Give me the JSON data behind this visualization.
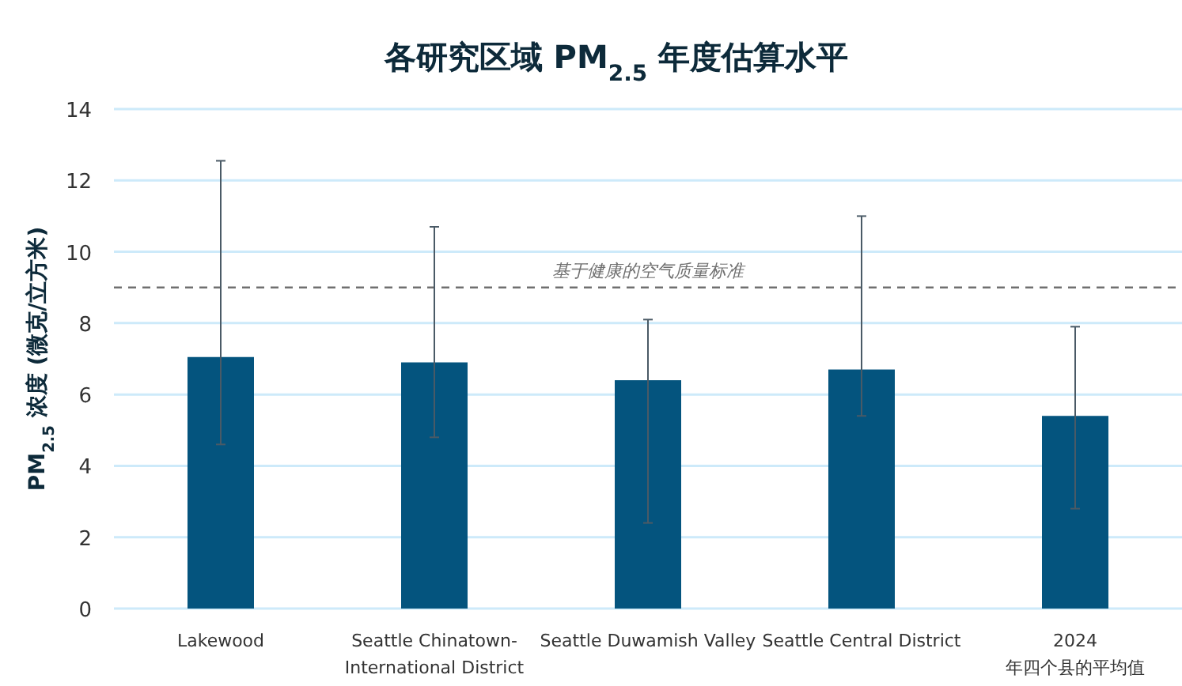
{
  "chart_data": {
    "type": "bar",
    "title": "各研究区域 PM$_{2.5}$ 年度估算水平",
    "ylabel": "PM$_{2.5}$ 浓度 (微克/立方米)",
    "categories": [
      "Lakewood",
      "Seattle Chinatown-\nInternational District",
      "Seattle Duwamish Valley",
      "Seattle Central District",
      "2024\n年四个县的平均值"
    ],
    "series": [
      {
        "color": "#04547e",
        "values": [
          7.05,
          6.9,
          6.4,
          6.7,
          5.4
        ],
        "errors": [
          [
            4.6,
            12.55
          ],
          [
            4.8,
            10.7
          ],
          [
            2.4,
            8.1
          ],
          [
            5.4,
            11.0
          ],
          [
            2.8,
            7.9
          ]
        ]
      }
    ],
    "ylim": [
      0,
      14
    ],
    "yticks": [
      0,
      2,
      4,
      6,
      8,
      10,
      12,
      14
    ],
    "grid": "y",
    "ref_lines": [
      {
        "axis": "y",
        "value": 9,
        "label": "基于健康的空气质量标准",
        "color": "#707070",
        "line_style": "dashed"
      }
    ]
  }
}
